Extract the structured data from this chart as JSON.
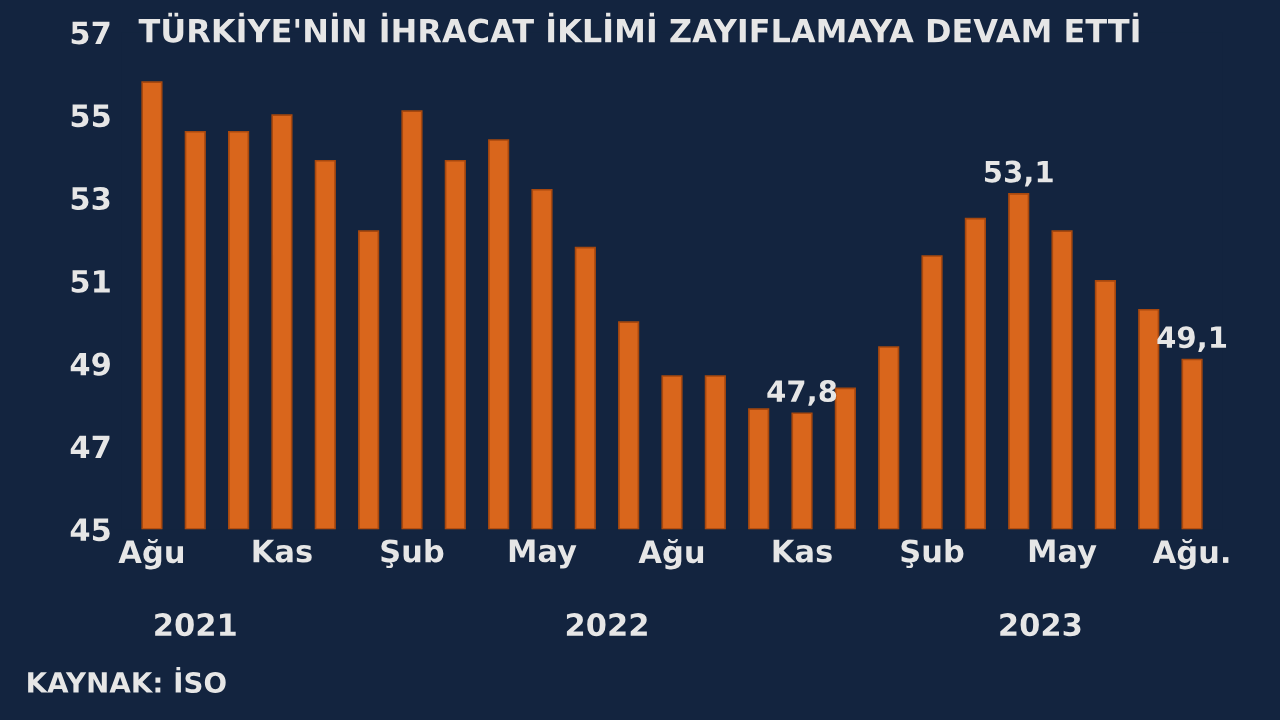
{
  "chart_data": {
    "type": "bar",
    "title": "TÜRKİYE'NİN İHRACAT İKLİMİ ZAYIFLAMAYA DEVAM ETTİ",
    "categories": [
      "Ağu",
      null,
      null,
      "Kas",
      null,
      null,
      "Şub",
      null,
      null,
      "May",
      null,
      null,
      "Ağu",
      null,
      null,
      "Kas",
      null,
      null,
      "Şub",
      null,
      null,
      "May",
      null,
      null,
      "Ağu."
    ],
    "values": [
      55.8,
      54.6,
      54.6,
      55.0,
      53.9,
      52.2,
      55.1,
      53.9,
      54.4,
      53.2,
      51.8,
      50.0,
      48.7,
      48.7,
      47.9,
      47.8,
      48.4,
      49.4,
      51.6,
      52.5,
      53.1,
      52.2,
      51.0,
      50.3,
      49.1
    ],
    "value_labels": [
      null,
      null,
      null,
      null,
      null,
      null,
      null,
      null,
      null,
      null,
      null,
      null,
      null,
      null,
      null,
      "47,8",
      null,
      null,
      null,
      null,
      "53,1",
      null,
      null,
      null,
      "49,1"
    ],
    "color": "#d9661c",
    "ylim": [
      45,
      57
    ],
    "yticks": [
      45,
      47,
      49,
      51,
      53,
      55,
      57
    ],
    "grid": false,
    "annotations": [
      "2021",
      "2022",
      "2023",
      "KAYNAK: İSO"
    ]
  }
}
